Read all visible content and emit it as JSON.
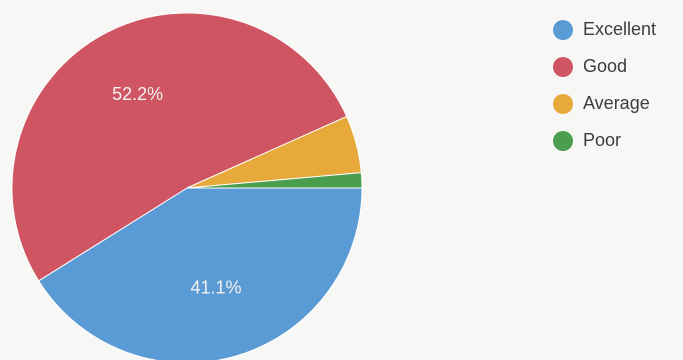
{
  "chart_data": {
    "type": "pie",
    "categories": [
      "Excellent",
      "Good",
      "Average",
      "Poor"
    ],
    "values": [
      41.1,
      52.2,
      5.3,
      1.4
    ],
    "colors": [
      "#5b9bd5",
      "#cf5563",
      "#e8a93b",
      "#4b9d4f"
    ],
    "data_labels": [
      "41.1%",
      "52.2%",
      "",
      ""
    ],
    "start_angle_deg": 0,
    "direction": "clockwise",
    "legend_position": "right",
    "title": ""
  }
}
